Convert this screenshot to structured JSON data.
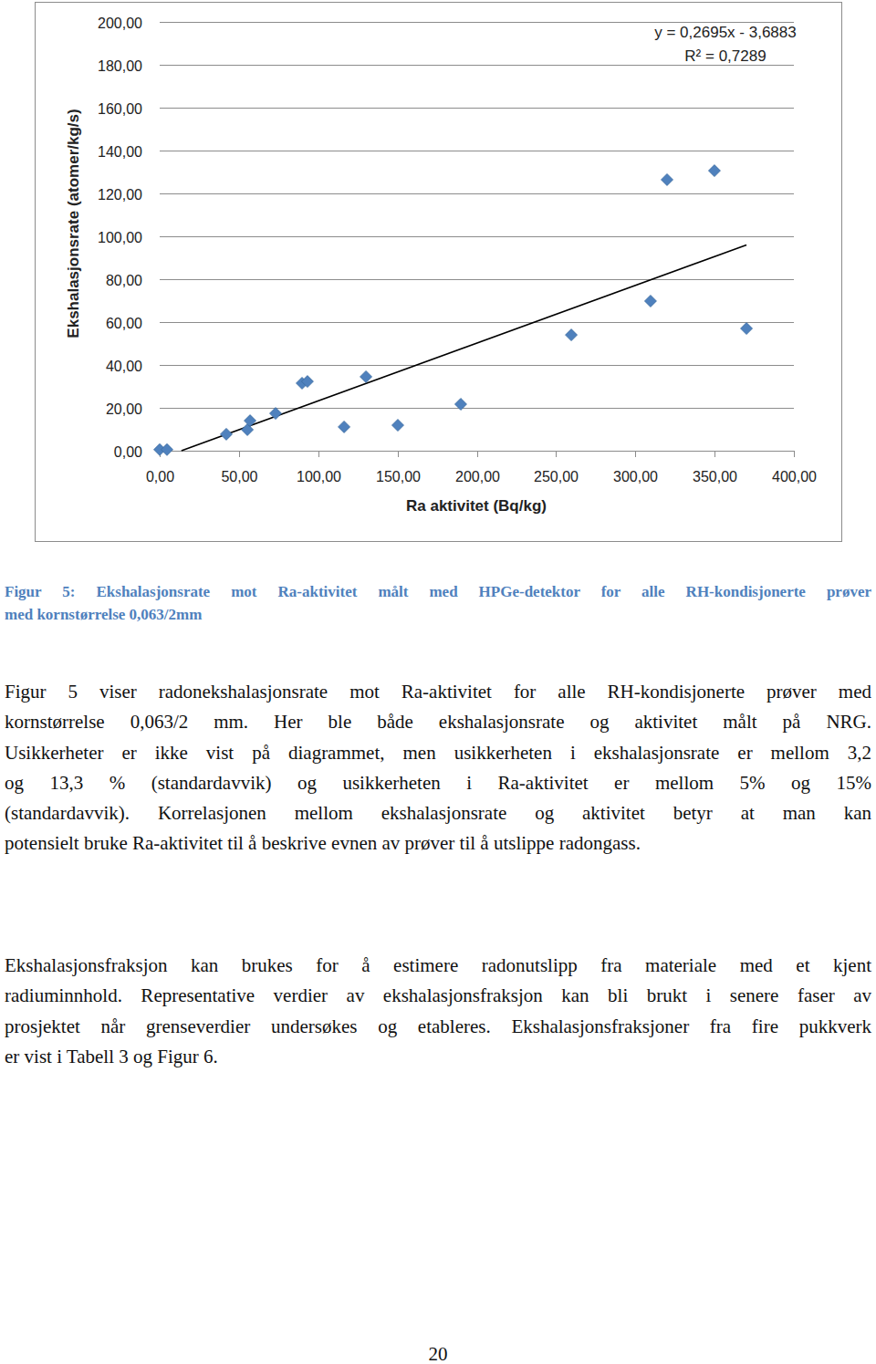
{
  "chart_data": {
    "type": "scatter",
    "x_label": "Ra aktivitet (Bq/kg)",
    "y_label": "Ekshalasjonsrate (atomer/kg/s)",
    "annotations": [
      "y = 0,2695x - 3,6883",
      "R² = 0,7289"
    ],
    "xlim": [
      0,
      400
    ],
    "ylim": [
      0,
      200
    ],
    "xticks": [
      {
        "value": 0,
        "label": "0,00"
      },
      {
        "value": 50,
        "label": "50,00"
      },
      {
        "value": 100,
        "label": "100,00"
      },
      {
        "value": 150,
        "label": "150,00"
      },
      {
        "value": 200,
        "label": "200,00"
      },
      {
        "value": 250,
        "label": "250,00"
      },
      {
        "value": 300,
        "label": "300,00"
      },
      {
        "value": 350,
        "label": "350,00"
      },
      {
        "value": 400,
        "label": "400,00"
      }
    ],
    "yticks": [
      {
        "value": 0,
        "label": "0,00"
      },
      {
        "value": 20,
        "label": "20,00"
      },
      {
        "value": 40,
        "label": "40,00"
      },
      {
        "value": 60,
        "label": "60,00"
      },
      {
        "value": 80,
        "label": "80,00"
      },
      {
        "value": 100,
        "label": "100,00"
      },
      {
        "value": 120,
        "label": "120,00"
      },
      {
        "value": 140,
        "label": "140,00"
      },
      {
        "value": 160,
        "label": "160,00"
      },
      {
        "value": 180,
        "label": "180,00"
      },
      {
        "value": 200,
        "label": "200,00"
      }
    ],
    "grid": "y",
    "x": [
      0,
      4.6,
      42.0,
      55.3,
      57.0,
      73.1,
      89.8,
      93.2,
      116.3,
      130.1,
      150.2,
      189.9,
      259.6,
      309.6,
      320.0,
      349.9,
      370.1
    ],
    "series": [
      {
        "type": "scatter",
        "marker": "diamond",
        "color": "#4f81bd",
        "values": [
          0.5,
          0.5,
          7.7,
          9.8,
          14.0,
          17.4,
          31.5,
          32.3,
          11.1,
          34.5,
          11.9,
          21.7,
          54.0,
          69.8,
          126.4,
          130.6,
          57.0
        ]
      },
      {
        "type": "line",
        "color": "#000000",
        "line_style": "solid",
        "x": [
          13.7,
          370.1
        ],
        "values": [
          0,
          96.0
        ]
      }
    ]
  },
  "caption": [
    "Figur 5: Ekshalasjonsrate mot Ra-aktivitet målt med HPGe-detektor for alle RH-kondisjonerte prøver",
    "med kornstørrelse 0,063/2mm"
  ],
  "paragraphs": [
    [
      "Figur 5 viser radonekshalasjonsrate mot Ra-aktivitet for alle RH-kondisjonerte prøver med",
      "kornstørrelse 0,063/2 mm.  Her ble både ekshalasjonsrate og aktivitet målt på NRG.",
      "Usikkerheter er ikke vist på diagrammet, men usikkerheten i ekshalasjonsrate er mellom 3,2",
      "og 13,3 % (standardavvik) og usikkerheten i Ra-aktivitet er mellom 5% og 15%",
      "(standardavvik). Korrelasjonen mellom ekshalasjonsrate og aktivitet betyr at man kan",
      "potensielt bruke Ra-aktivitet til å beskrive evnen av prøver til å utslippe radongass."
    ],
    [
      "Ekshalasjonsfraksjon kan brukes for å estimere radonutslipp fra materiale med et kjent",
      "radiuminnhold.  Representative verdier av ekshalasjonsfraksjon kan bli brukt i senere faser av",
      "prosjektet når grenseverdier undersøkes og etableres. Ekshalasjonsfraksjoner fra fire pukkverk",
      "er vist i Tabell 3 og Figur 6."
    ]
  ],
  "page_number": "20"
}
